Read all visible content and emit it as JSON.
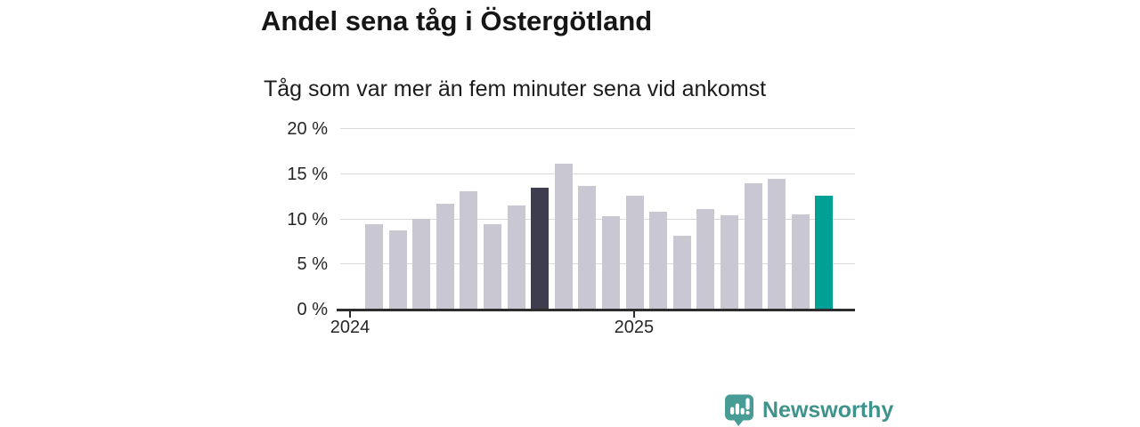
{
  "header": {
    "title": "Andel sena tåg i Östergötland",
    "subtitle": "Tåg som var mer än fem minuter sena vid ankomst"
  },
  "chart_data": {
    "type": "bar",
    "title": "Andel sena tåg i Östergötland",
    "subtitle": "Tåg som var mer än fem minuter sena vid ankomst",
    "unit": "% sena tåg",
    "x": [
      "2024-01",
      "2024-02",
      "2024-03",
      "2024-04",
      "2024-05",
      "2024-06",
      "2024-07",
      "2024-08",
      "2024-09",
      "2024-10",
      "2024-11",
      "2024-12",
      "2025-01",
      "2025-02",
      "2025-03",
      "2025-04",
      "2025-05",
      "2025-06",
      "2025-07",
      "2025-08"
    ],
    "values": [
      9.4,
      8.7,
      10.0,
      11.6,
      13.0,
      9.4,
      11.4,
      13.4,
      16.1,
      13.6,
      10.2,
      12.5,
      10.7,
      8.1,
      11.0,
      10.3,
      13.9,
      14.4,
      10.4,
      12.5
    ],
    "ylim": [
      0,
      20
    ],
    "grid": true,
    "legend": "none",
    "y_axis": {
      "tick_values": [
        0,
        5,
        10,
        15,
        20
      ],
      "tick_labels": [
        "0 %",
        "5 %",
        "10 %",
        "15 %",
        "20 %"
      ]
    },
    "x_axis": {
      "tick_month_indices": [
        0,
        12
      ],
      "tick_labels": [
        "2024",
        "2025"
      ]
    },
    "highlight": {
      "dark_index": 7,
      "dark_month": "2024-08",
      "teal_index": 19,
      "teal_month": "2025-08"
    },
    "colors": {
      "bar_default": "#c9c8d2",
      "bar_dark": "#3d3d4e",
      "bar_latest": "#00a194",
      "gridline": "#dadada",
      "axis": "#2d2d2d"
    }
  },
  "footer": {
    "brand": "Newsworthy",
    "logo_color": "#479d96",
    "logo_text_color": "#3f938d"
  }
}
